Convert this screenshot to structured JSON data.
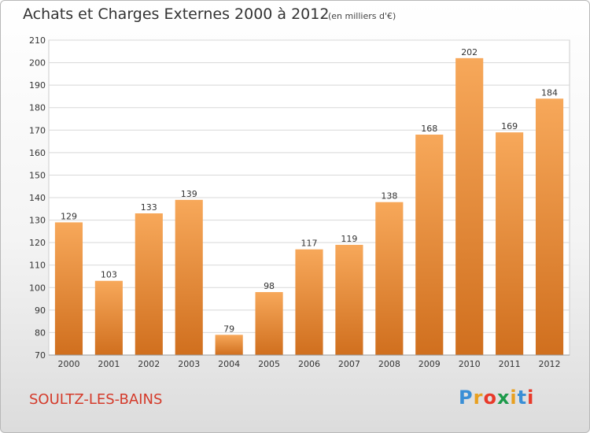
{
  "chart_data": {
    "type": "bar",
    "title": "Achats et Charges Externes 2000 à 2012",
    "subtitle": "(en milliers d'€)",
    "categories": [
      "2000",
      "2001",
      "2002",
      "2003",
      "2004",
      "2005",
      "2006",
      "2007",
      "2008",
      "2009",
      "2010",
      "2011",
      "2012"
    ],
    "values": [
      129,
      103,
      133,
      139,
      79,
      98,
      117,
      119,
      138,
      168,
      202,
      169,
      184
    ],
    "data_labels": [
      "129",
      "103",
      "133",
      "139",
      "79",
      "98",
      "117",
      "119",
      "138",
      "168",
      "202",
      "169",
      "184"
    ],
    "ylim": [
      70,
      210
    ],
    "yticks": [
      "70",
      "80",
      "90",
      "100",
      "110",
      "120",
      "130",
      "140",
      "150",
      "160",
      "170",
      "180",
      "190",
      "200",
      "210"
    ],
    "grid": true,
    "bar_color_top": "#f7a85a",
    "bar_color_bottom": "#d06f1e",
    "xlabel": "",
    "ylabel": ""
  },
  "commune": "SOULTZ-LES-BAINS",
  "logo": {
    "text": "Proxiti",
    "letters": [
      "P",
      "r",
      "o",
      "x",
      "i",
      "t",
      "i"
    ],
    "colors": [
      "#3a8fd6",
      "#e8a020",
      "#e83a2a",
      "#1c9a4a",
      "#e8a020",
      "#3a8fd6",
      "#e83a2a"
    ]
  }
}
